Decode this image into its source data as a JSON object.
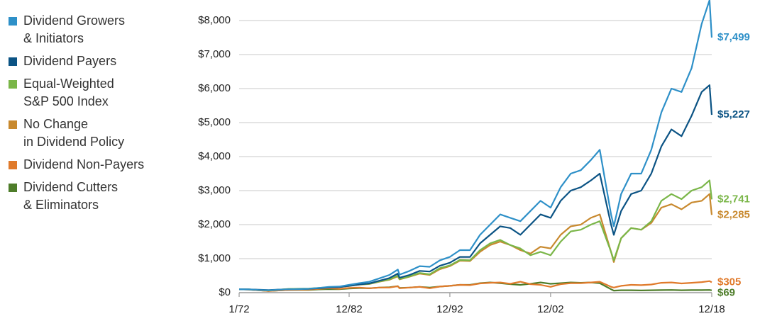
{
  "chart_data": {
    "type": "line",
    "x": [
      1972,
      1972.92,
      1973.92,
      1974.92,
      1975.92,
      1976.92,
      1977.92,
      1978.92,
      1979.92,
      1980.92,
      1981.92,
      1982.92,
      1983.92,
      1984.92,
      1985.92,
      1986.92,
      1987.75,
      1987.92,
      1988.92,
      1989.92,
      1990.92,
      1991.92,
      1992.92,
      1993.92,
      1994.92,
      1995.92,
      1996.92,
      1997.92,
      1998.92,
      1999.92,
      2000.92,
      2001.92,
      2002.92,
      2003.92,
      2004.92,
      2005.92,
      2006.92,
      2007.8,
      2008.92,
      2009.2,
      2009.92,
      2010.92,
      2011.92,
      2012.92,
      2013.92,
      2014.92,
      2015.92,
      2016.92,
      2017.92,
      2018.7,
      2018.92
    ],
    "xlim": [
      1972,
      2018.92
    ],
    "xticks": [
      {
        "value": 1972,
        "label": "1/72"
      },
      {
        "value": 1982.92,
        "label": "12/82"
      },
      {
        "value": 1992.92,
        "label": "12/92"
      },
      {
        "value": 2002.92,
        "label": "12/02"
      },
      {
        "value": 2018.92,
        "label": "12/18"
      }
    ],
    "ylim": [
      0,
      8500
    ],
    "yticks": [
      {
        "value": 0,
        "label": "$0"
      },
      {
        "value": 1000,
        "label": "$1,000"
      },
      {
        "value": 2000,
        "label": "$2,000"
      },
      {
        "value": 3000,
        "label": "$3,000"
      },
      {
        "value": 4000,
        "label": "$4,000"
      },
      {
        "value": 5000,
        "label": "$5,000"
      },
      {
        "value": 6000,
        "label": "$6,000"
      },
      {
        "value": 7000,
        "label": "$7,000"
      },
      {
        "value": 8000,
        "label": "$8,000"
      }
    ],
    "grid": true,
    "legend": "left",
    "series": [
      {
        "name": "Dividend Growers\n& Initiators",
        "color": "#2e90c8",
        "values": [
          100,
          95,
          80,
          70,
          85,
          100,
          105,
          115,
          140,
          170,
          180,
          230,
          280,
          320,
          420,
          520,
          680,
          530,
          640,
          780,
          760,
          950,
          1050,
          1250,
          1250,
          1700,
          2000,
          2300,
          2200,
          2100,
          2400,
          2700,
          2500,
          3100,
          3500,
          3600,
          3900,
          4200,
          2300,
          1950,
          2900,
          3500,
          3500,
          4200,
          5300,
          6000,
          5900,
          6600,
          7900,
          8600,
          7499
        ],
        "value_labels": [
          null,
          null,
          null,
          null,
          null,
          null,
          null,
          null,
          null,
          null,
          null,
          null,
          null,
          null,
          null,
          null,
          null,
          null,
          null,
          null,
          null,
          null,
          null,
          null,
          null,
          null,
          null,
          null,
          null,
          null,
          null,
          null,
          null,
          null,
          null,
          null,
          null,
          null,
          null,
          null,
          null,
          null,
          null,
          null,
          null,
          null,
          null,
          null,
          null,
          null,
          "$7,499"
        ]
      },
      {
        "name": "Dividend Payers",
        "color": "#0b5384",
        "values": [
          100,
          95,
          85,
          75,
          90,
          100,
          105,
          110,
          130,
          150,
          160,
          200,
          240,
          270,
          350,
          430,
          560,
          440,
          520,
          640,
          620,
          790,
          880,
          1050,
          1050,
          1450,
          1700,
          1950,
          1900,
          1700,
          2000,
          2300,
          2200,
          2700,
          3000,
          3100,
          3300,
          3500,
          2000,
          1700,
          2400,
          2900,
          3000,
          3500,
          4300,
          4800,
          4600,
          5200,
          5900,
          6100,
          5227
        ],
        "value_labels": [
          null,
          null,
          null,
          null,
          null,
          null,
          null,
          null,
          null,
          null,
          null,
          null,
          null,
          null,
          null,
          null,
          null,
          null,
          null,
          null,
          null,
          null,
          null,
          null,
          null,
          null,
          null,
          null,
          null,
          null,
          null,
          null,
          null,
          null,
          null,
          null,
          null,
          null,
          null,
          null,
          null,
          null,
          null,
          null,
          null,
          null,
          null,
          null,
          null,
          null,
          "$5,227"
        ]
      },
      {
        "name": "Equal-Weighted\nS&P 500 Index",
        "color": "#7ab648",
        "values": [
          100,
          95,
          80,
          65,
          85,
          110,
          115,
          120,
          140,
          160,
          170,
          200,
          240,
          260,
          330,
          390,
          500,
          400,
          480,
          580,
          540,
          720,
          800,
          960,
          950,
          1250,
          1450,
          1550,
          1400,
          1300,
          1100,
          1200,
          1100,
          1500,
          1800,
          1850,
          2000,
          2100,
          1200,
          950,
          1600,
          1900,
          1850,
          2100,
          2700,
          2900,
          2750,
          3000,
          3100,
          3300,
          2741
        ],
        "value_labels": [
          null,
          null,
          null,
          null,
          null,
          null,
          null,
          null,
          null,
          null,
          null,
          null,
          null,
          null,
          null,
          null,
          null,
          null,
          null,
          null,
          null,
          null,
          null,
          null,
          null,
          null,
          null,
          null,
          null,
          null,
          null,
          null,
          null,
          null,
          null,
          null,
          null,
          null,
          null,
          null,
          null,
          null,
          null,
          null,
          null,
          null,
          null,
          null,
          null,
          null,
          "$2,741"
        ]
      },
      {
        "name": "No Change\nin Dividend Policy",
        "color": "#c8892e",
        "values": [
          100,
          95,
          80,
          65,
          85,
          105,
          110,
          115,
          135,
          155,
          165,
          195,
          235,
          255,
          320,
          380,
          480,
          390,
          470,
          560,
          520,
          690,
          780,
          940,
          930,
          1200,
          1400,
          1500,
          1400,
          1250,
          1150,
          1350,
          1300,
          1700,
          1950,
          2000,
          2200,
          2300,
          1200,
          900,
          1600,
          1900,
          1850,
          2050,
          2500,
          2600,
          2450,
          2650,
          2700,
          2900,
          2285
        ],
        "value_labels": [
          null,
          null,
          null,
          null,
          null,
          null,
          null,
          null,
          null,
          null,
          null,
          null,
          null,
          null,
          null,
          null,
          null,
          null,
          null,
          null,
          null,
          null,
          null,
          null,
          null,
          null,
          null,
          null,
          null,
          null,
          null,
          null,
          null,
          null,
          null,
          null,
          null,
          null,
          null,
          null,
          null,
          null,
          null,
          null,
          null,
          null,
          null,
          null,
          null,
          null,
          "$2,285"
        ]
      },
      {
        "name": "Dividend Non-Payers",
        "color": "#e07a2b",
        "values": [
          100,
          90,
          70,
          50,
          65,
          80,
          85,
          90,
          110,
          130,
          110,
          140,
          150,
          130,
          150,
          150,
          190,
          130,
          150,
          170,
          130,
          180,
          200,
          230,
          220,
          270,
          290,
          300,
          260,
          320,
          250,
          230,
          170,
          250,
          280,
          280,
          300,
          320,
          170,
          150,
          200,
          230,
          220,
          240,
          290,
          300,
          270,
          290,
          310,
          340,
          305
        ],
        "value_labels": [
          null,
          null,
          null,
          null,
          null,
          null,
          null,
          null,
          null,
          null,
          null,
          null,
          null,
          null,
          null,
          null,
          null,
          null,
          null,
          null,
          null,
          null,
          null,
          null,
          null,
          null,
          null,
          null,
          null,
          null,
          null,
          null,
          null,
          null,
          null,
          null,
          null,
          null,
          null,
          null,
          null,
          null,
          null,
          null,
          null,
          null,
          null,
          null,
          null,
          null,
          "$305"
        ]
      },
      {
        "name": "Dividend Cutters\n& Eliminators",
        "color": "#4e7d2a",
        "values": [
          100,
          90,
          70,
          50,
          65,
          80,
          80,
          80,
          95,
          105,
          100,
          120,
          135,
          130,
          150,
          160,
          190,
          140,
          150,
          170,
          150,
          180,
          200,
          230,
          230,
          280,
          300,
          280,
          250,
          230,
          260,
          300,
          260,
          280,
          300,
          290,
          300,
          280,
          100,
          60,
          70,
          70,
          65,
          70,
          75,
          80,
          70,
          75,
          75,
          80,
          69
        ],
        "value_labels": [
          null,
          null,
          null,
          null,
          null,
          null,
          null,
          null,
          null,
          null,
          null,
          null,
          null,
          null,
          null,
          null,
          null,
          null,
          null,
          null,
          null,
          null,
          null,
          null,
          null,
          null,
          null,
          null,
          null,
          null,
          null,
          null,
          null,
          null,
          null,
          null,
          null,
          null,
          null,
          null,
          null,
          null,
          null,
          null,
          null,
          null,
          null,
          null,
          null,
          null,
          "$69"
        ]
      }
    ]
  }
}
